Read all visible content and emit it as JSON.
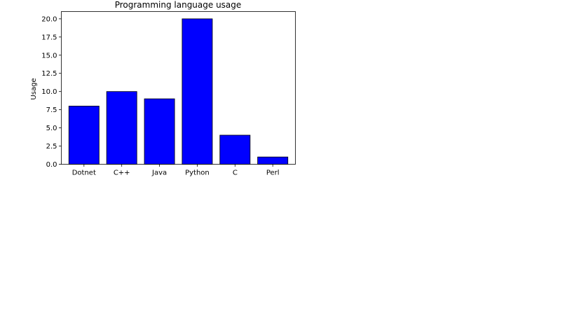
{
  "chart_data": {
    "type": "bar",
    "title": "Programming language usage",
    "xlabel": "",
    "ylabel": "Usage",
    "categories": [
      "Dotnet",
      "C++",
      "Java",
      "Python",
      "C",
      "Perl"
    ],
    "values": [
      8,
      10,
      9,
      20,
      4,
      1
    ],
    "ylim": [
      0,
      21
    ],
    "yticks": [
      0.0,
      2.5,
      5.0,
      7.5,
      10.0,
      12.5,
      15.0,
      17.5,
      20.0
    ],
    "ytick_labels": [
      "0.0",
      "2.5",
      "5.0",
      "7.5",
      "10.0",
      "12.5",
      "15.0",
      "17.5",
      "20.0"
    ],
    "bar_color": "#0000ff",
    "bar_edge_color": "#000000",
    "grid": false
  }
}
